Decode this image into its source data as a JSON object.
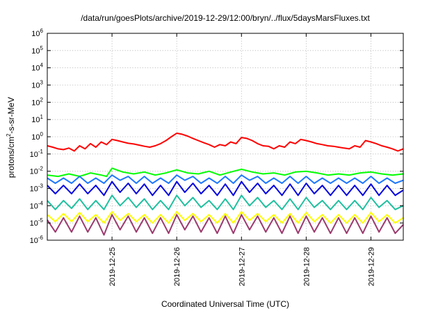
{
  "chart_data": {
    "type": "line",
    "title": "/data/run/goesPlots/archive/2019-12-29/12:00/bryn/../flux/5daysMarsFluxes.txt",
    "xlabel": "Coordinated Universal Time (UTC)",
    "ylabel": {
      "prefix": "protons/cm",
      "sup": "2",
      "suffix": "-s-sr-MeV"
    },
    "y_scale": "log",
    "ylim": [
      1e-06,
      1000000.0
    ],
    "y_ticks": [
      {
        "value": 1e-06,
        "base": "10",
        "exp": "-6"
      },
      {
        "value": 1e-05,
        "base": "10",
        "exp": "-5"
      },
      {
        "value": 0.0001,
        "base": "10",
        "exp": "-4"
      },
      {
        "value": 0.001,
        "base": "10",
        "exp": "-3"
      },
      {
        "value": 0.01,
        "base": "10",
        "exp": "-2"
      },
      {
        "value": 0.1,
        "base": "10",
        "exp": "-1"
      },
      {
        "value": 1.0,
        "base": "10",
        "exp": "0"
      },
      {
        "value": 10.0,
        "base": "10",
        "exp": "1"
      },
      {
        "value": 100.0,
        "base": "10",
        "exp": "2"
      },
      {
        "value": 1000.0,
        "base": "10",
        "exp": "3"
      },
      {
        "value": 10000.0,
        "base": "10",
        "exp": "4"
      },
      {
        "value": 100000.0,
        "base": "10",
        "exp": "5"
      },
      {
        "value": 1000000.0,
        "base": "10",
        "exp": "6"
      }
    ],
    "xlim": [
      "2019-12-24T00:00",
      "2019-12-29T12:00"
    ],
    "x_ticks": [
      "2019-12-25",
      "2019-12-26",
      "2019-12-27",
      "2019-12-28",
      "2019-12-29"
    ],
    "grid": true,
    "legend": "none",
    "series": [
      {
        "color": "#ff0000",
        "x": [
          "2019-12-24T00:00",
          "2019-12-24T02:00",
          "2019-12-24T04:00",
          "2019-12-24T06:00",
          "2019-12-24T08:00",
          "2019-12-24T10:00",
          "2019-12-24T12:00",
          "2019-12-24T14:00",
          "2019-12-24T16:00",
          "2019-12-24T18:00",
          "2019-12-24T20:00",
          "2019-12-24T22:00",
          "2019-12-25T00:00",
          "2019-12-25T02:00",
          "2019-12-25T04:00",
          "2019-12-25T06:00",
          "2019-12-25T08:00",
          "2019-12-25T10:00",
          "2019-12-25T12:00",
          "2019-12-25T14:00",
          "2019-12-25T16:00",
          "2019-12-25T18:00",
          "2019-12-25T20:00",
          "2019-12-25T22:00",
          "2019-12-26T00:00",
          "2019-12-26T02:00",
          "2019-12-26T04:00",
          "2019-12-26T06:00",
          "2019-12-26T08:00",
          "2019-12-26T10:00",
          "2019-12-26T12:00",
          "2019-12-26T14:00",
          "2019-12-26T16:00",
          "2019-12-26T18:00",
          "2019-12-26T20:00",
          "2019-12-26T22:00",
          "2019-12-27T00:00",
          "2019-12-27T02:00",
          "2019-12-27T04:00",
          "2019-12-27T06:00",
          "2019-12-27T08:00",
          "2019-12-27T10:00",
          "2019-12-27T12:00",
          "2019-12-27T14:00",
          "2019-12-27T16:00",
          "2019-12-27T18:00",
          "2019-12-27T20:00",
          "2019-12-27T22:00",
          "2019-12-28T00:00",
          "2019-12-28T02:00",
          "2019-12-28T04:00",
          "2019-12-28T06:00",
          "2019-12-28T08:00",
          "2019-12-28T10:00",
          "2019-12-28T12:00",
          "2019-12-28T14:00",
          "2019-12-28T16:00",
          "2019-12-28T18:00",
          "2019-12-28T20:00",
          "2019-12-28T22:00",
          "2019-12-29T00:00",
          "2019-12-29T02:00",
          "2019-12-29T04:00",
          "2019-12-29T06:00",
          "2019-12-29T08:00",
          "2019-12-29T10:00",
          "2019-12-29T12:00"
        ],
        "y": [
          0.3,
          0.25,
          0.2,
          0.18,
          0.22,
          0.15,
          0.3,
          0.2,
          0.4,
          0.25,
          0.5,
          0.35,
          0.7,
          0.6,
          0.5,
          0.42,
          0.38,
          0.33,
          0.28,
          0.25,
          0.3,
          0.4,
          0.6,
          1.0,
          1.6,
          1.4,
          1.1,
          0.8,
          0.6,
          0.45,
          0.35,
          0.25,
          0.35,
          0.3,
          0.5,
          0.4,
          0.9,
          0.8,
          0.6,
          0.4,
          0.3,
          0.28,
          0.2,
          0.3,
          0.25,
          0.5,
          0.4,
          0.7,
          0.6,
          0.5,
          0.4,
          0.35,
          0.3,
          0.28,
          0.25,
          0.22,
          0.2,
          0.3,
          0.25,
          0.6,
          0.5,
          0.4,
          0.3,
          0.25,
          0.2,
          0.15,
          0.2
        ]
      },
      {
        "color": "#00ff00",
        "x": [
          "2019-12-24T00:00",
          "2019-12-24T04:00",
          "2019-12-24T08:00",
          "2019-12-24T12:00",
          "2019-12-24T16:00",
          "2019-12-24T20:00",
          "2019-12-24T22:00",
          "2019-12-25T00:00",
          "2019-12-25T04:00",
          "2019-12-25T08:00",
          "2019-12-25T12:00",
          "2019-12-25T16:00",
          "2019-12-25T20:00",
          "2019-12-26T00:00",
          "2019-12-26T04:00",
          "2019-12-26T08:00",
          "2019-12-26T12:00",
          "2019-12-26T16:00",
          "2019-12-26T20:00",
          "2019-12-27T00:00",
          "2019-12-27T04:00",
          "2019-12-27T08:00",
          "2019-12-27T12:00",
          "2019-12-27T16:00",
          "2019-12-27T20:00",
          "2019-12-28T00:00",
          "2019-12-28T04:00",
          "2019-12-28T08:00",
          "2019-12-28T12:00",
          "2019-12-28T16:00",
          "2019-12-28T20:00",
          "2019-12-29T00:00",
          "2019-12-29T04:00",
          "2019-12-29T08:00",
          "2019-12-29T12:00"
        ],
        "y": [
          0.006,
          0.005,
          0.007,
          0.005,
          0.008,
          0.006,
          0.005,
          0.015,
          0.009,
          0.007,
          0.009,
          0.006,
          0.008,
          0.012,
          0.008,
          0.007,
          0.01,
          0.006,
          0.009,
          0.013,
          0.009,
          0.007,
          0.008,
          0.006,
          0.009,
          0.01,
          0.008,
          0.006,
          0.007,
          0.006,
          0.008,
          0.009,
          0.007,
          0.006,
          0.007
        ]
      },
      {
        "color": "#1e78ff",
        "x": [
          "2019-12-24T00:00",
          "2019-12-24T03:00",
          "2019-12-24T06:00",
          "2019-12-24T09:00",
          "2019-12-24T12:00",
          "2019-12-24T15:00",
          "2019-12-24T18:00",
          "2019-12-24T21:00",
          "2019-12-25T00:00",
          "2019-12-25T03:00",
          "2019-12-25T06:00",
          "2019-12-25T09:00",
          "2019-12-25T12:00",
          "2019-12-25T15:00",
          "2019-12-25T18:00",
          "2019-12-25T21:00",
          "2019-12-26T00:00",
          "2019-12-26T03:00",
          "2019-12-26T06:00",
          "2019-12-26T09:00",
          "2019-12-26T12:00",
          "2019-12-26T15:00",
          "2019-12-26T18:00",
          "2019-12-26T21:00",
          "2019-12-27T00:00",
          "2019-12-27T03:00",
          "2019-12-27T06:00",
          "2019-12-27T09:00",
          "2019-12-27T12:00",
          "2019-12-27T15:00",
          "2019-12-27T18:00",
          "2019-12-27T21:00",
          "2019-12-28T00:00",
          "2019-12-28T03:00",
          "2019-12-28T06:00",
          "2019-12-28T09:00",
          "2019-12-28T12:00",
          "2019-12-28T15:00",
          "2019-12-28T18:00",
          "2019-12-28T21:00",
          "2019-12-29T00:00",
          "2019-12-29T03:00",
          "2019-12-29T06:00",
          "2019-12-29T09:00",
          "2019-12-29T12:00"
        ],
        "y": [
          0.004,
          0.002,
          0.004,
          0.002,
          0.005,
          0.002,
          0.004,
          0.002,
          0.006,
          0.003,
          0.005,
          0.002,
          0.005,
          0.002,
          0.004,
          0.002,
          0.006,
          0.003,
          0.005,
          0.002,
          0.004,
          0.002,
          0.005,
          0.002,
          0.006,
          0.003,
          0.005,
          0.002,
          0.004,
          0.002,
          0.005,
          0.002,
          0.005,
          0.002,
          0.004,
          0.002,
          0.004,
          0.002,
          0.004,
          0.002,
          0.005,
          0.002,
          0.004,
          0.002,
          0.003
        ]
      },
      {
        "color": "#0000dd",
        "x": [
          "2019-12-24T00:00",
          "2019-12-24T03:00",
          "2019-12-24T06:00",
          "2019-12-24T09:00",
          "2019-12-24T12:00",
          "2019-12-24T15:00",
          "2019-12-24T18:00",
          "2019-12-24T21:00",
          "2019-12-25T00:00",
          "2019-12-25T03:00",
          "2019-12-25T06:00",
          "2019-12-25T09:00",
          "2019-12-25T12:00",
          "2019-12-25T15:00",
          "2019-12-25T18:00",
          "2019-12-25T21:00",
          "2019-12-26T00:00",
          "2019-12-26T03:00",
          "2019-12-26T06:00",
          "2019-12-26T09:00",
          "2019-12-26T12:00",
          "2019-12-26T15:00",
          "2019-12-26T18:00",
          "2019-12-26T21:00",
          "2019-12-27T00:00",
          "2019-12-27T03:00",
          "2019-12-27T06:00",
          "2019-12-27T09:00",
          "2019-12-27T12:00",
          "2019-12-27T15:00",
          "2019-12-27T18:00",
          "2019-12-27T21:00",
          "2019-12-28T00:00",
          "2019-12-28T03:00",
          "2019-12-28T06:00",
          "2019-12-28T09:00",
          "2019-12-28T12:00",
          "2019-12-28T15:00",
          "2019-12-28T18:00",
          "2019-12-28T21:00",
          "2019-12-29T00:00",
          "2019-12-29T03:00",
          "2019-12-29T06:00",
          "2019-12-29T09:00",
          "2019-12-29T12:00"
        ],
        "y": [
          0.0015,
          0.0005,
          0.0015,
          0.0005,
          0.0018,
          0.0005,
          0.0015,
          0.0004,
          0.0025,
          0.0006,
          0.002,
          0.0005,
          0.0018,
          0.0004,
          0.0015,
          0.0004,
          0.0025,
          0.0006,
          0.002,
          0.0005,
          0.0015,
          0.0004,
          0.0018,
          0.0004,
          0.0025,
          0.0006,
          0.002,
          0.0005,
          0.0015,
          0.0004,
          0.0018,
          0.0004,
          0.002,
          0.0005,
          0.0015,
          0.0004,
          0.0015,
          0.0004,
          0.0015,
          0.0004,
          0.0018,
          0.0004,
          0.0015,
          0.0004,
          0.0008
        ]
      },
      {
        "color": "#20c0a0",
        "x": [
          "2019-12-24T00:00",
          "2019-12-24T03:00",
          "2019-12-24T06:00",
          "2019-12-24T09:00",
          "2019-12-24T12:00",
          "2019-12-24T15:00",
          "2019-12-24T18:00",
          "2019-12-24T21:00",
          "2019-12-25T00:00",
          "2019-12-25T03:00",
          "2019-12-25T06:00",
          "2019-12-25T09:00",
          "2019-12-25T12:00",
          "2019-12-25T15:00",
          "2019-12-25T18:00",
          "2019-12-25T21:00",
          "2019-12-26T00:00",
          "2019-12-26T03:00",
          "2019-12-26T06:00",
          "2019-12-26T09:00",
          "2019-12-26T12:00",
          "2019-12-26T15:00",
          "2019-12-26T18:00",
          "2019-12-26T21:00",
          "2019-12-27T00:00",
          "2019-12-27T03:00",
          "2019-12-27T06:00",
          "2019-12-27T09:00",
          "2019-12-27T12:00",
          "2019-12-27T15:00",
          "2019-12-27T18:00",
          "2019-12-27T21:00",
          "2019-12-28T00:00",
          "2019-12-28T03:00",
          "2019-12-28T06:00",
          "2019-12-28T09:00",
          "2019-12-28T12:00",
          "2019-12-28T15:00",
          "2019-12-28T18:00",
          "2019-12-28T21:00",
          "2019-12-29T00:00",
          "2019-12-29T03:00",
          "2019-12-29T06:00",
          "2019-12-29T09:00",
          "2019-12-29T12:00"
        ],
        "y": [
          0.0002,
          6e-05,
          0.0002,
          7e-05,
          0.00025,
          6e-05,
          0.0002,
          6e-05,
          0.0004,
          0.0001,
          0.0003,
          8e-05,
          0.00025,
          6e-05,
          0.0002,
          6e-05,
          0.0004,
          0.0001,
          0.0003,
          8e-05,
          0.0002,
          6e-05,
          0.00025,
          6e-05,
          0.0004,
          0.0001,
          0.0003,
          8e-05,
          0.0002,
          6e-05,
          0.00025,
          6e-05,
          0.0003,
          8e-05,
          0.0002,
          6e-05,
          0.0002,
          6e-05,
          0.0002,
          6e-05,
          0.0003,
          8e-05,
          0.0002,
          6e-05,
          0.0001
        ]
      },
      {
        "color": "#ffff00",
        "x": [
          "2019-12-24T00:00",
          "2019-12-24T03:00",
          "2019-12-24T06:00",
          "2019-12-24T09:00",
          "2019-12-24T12:00",
          "2019-12-24T15:00",
          "2019-12-24T18:00",
          "2019-12-24T21:00",
          "2019-12-25T00:00",
          "2019-12-25T03:00",
          "2019-12-25T06:00",
          "2019-12-25T09:00",
          "2019-12-25T12:00",
          "2019-12-25T15:00",
          "2019-12-25T18:00",
          "2019-12-25T21:00",
          "2019-12-26T00:00",
          "2019-12-26T03:00",
          "2019-12-26T06:00",
          "2019-12-26T09:00",
          "2019-12-26T12:00",
          "2019-12-26T15:00",
          "2019-12-26T18:00",
          "2019-12-26T21:00",
          "2019-12-27T00:00",
          "2019-12-27T03:00",
          "2019-12-27T06:00",
          "2019-12-27T09:00",
          "2019-12-27T12:00",
          "2019-12-27T15:00",
          "2019-12-27T18:00",
          "2019-12-27T21:00",
          "2019-12-28T00:00",
          "2019-12-28T03:00",
          "2019-12-28T06:00",
          "2019-12-28T09:00",
          "2019-12-28T12:00",
          "2019-12-28T15:00",
          "2019-12-28T18:00",
          "2019-12-28T21:00",
          "2019-12-29T00:00",
          "2019-12-29T03:00",
          "2019-12-29T06:00",
          "2019-12-29T09:00",
          "2019-12-29T12:00"
        ],
        "y": [
          3e-05,
          1.2e-05,
          3.5e-05,
          1.2e-05,
          4e-05,
          1.2e-05,
          3e-05,
          1e-05,
          4.5e-05,
          1.4e-05,
          3.5e-05,
          1.2e-05,
          3e-05,
          1e-05,
          3e-05,
          1e-05,
          4.5e-05,
          1.4e-05,
          3.5e-05,
          1.2e-05,
          3e-05,
          1e-05,
          3.5e-05,
          1e-05,
          4.5e-05,
          1.4e-05,
          3.5e-05,
          1.2e-05,
          3e-05,
          1e-05,
          3.5e-05,
          1e-05,
          4e-05,
          1.2e-05,
          3e-05,
          1e-05,
          3e-05,
          1e-05,
          3e-05,
          1e-05,
          4e-05,
          1.2e-05,
          3e-05,
          1e-05,
          2e-05
        ]
      },
      {
        "color": "#9b3a6e",
        "x": [
          "2019-12-24T00:00",
          "2019-12-24T03:00",
          "2019-12-24T06:00",
          "2019-12-24T09:00",
          "2019-12-24T12:00",
          "2019-12-24T15:00",
          "2019-12-24T18:00",
          "2019-12-24T21:00",
          "2019-12-25T00:00",
          "2019-12-25T03:00",
          "2019-12-25T06:00",
          "2019-12-25T09:00",
          "2019-12-25T12:00",
          "2019-12-25T15:00",
          "2019-12-25T18:00",
          "2019-12-25T21:00",
          "2019-12-26T00:00",
          "2019-12-26T03:00",
          "2019-12-26T06:00",
          "2019-12-26T09:00",
          "2019-12-26T12:00",
          "2019-12-26T15:00",
          "2019-12-26T18:00",
          "2019-12-26T21:00",
          "2019-12-27T00:00",
          "2019-12-27T03:00",
          "2019-12-27T06:00",
          "2019-12-27T09:00",
          "2019-12-27T12:00",
          "2019-12-27T15:00",
          "2019-12-27T18:00",
          "2019-12-27T21:00",
          "2019-12-28T00:00",
          "2019-12-28T03:00",
          "2019-12-28T06:00",
          "2019-12-28T09:00",
          "2019-12-28T12:00",
          "2019-12-28T15:00",
          "2019-12-28T18:00",
          "2019-12-28T21:00",
          "2019-12-29T00:00",
          "2019-12-29T03:00",
          "2019-12-29T06:00",
          "2019-12-29T09:00",
          "2019-12-29T12:00"
        ],
        "y": [
          1.5e-05,
          3e-06,
          2e-05,
          3e-06,
          2.5e-05,
          3e-06,
          2e-05,
          2e-06,
          3e-05,
          4e-06,
          2.5e-05,
          3e-06,
          2e-05,
          2.5e-06,
          2e-05,
          2.5e-06,
          3e-05,
          4e-06,
          2.5e-05,
          3e-06,
          2e-05,
          2.5e-06,
          2.5e-05,
          2.5e-06,
          3e-05,
          4e-06,
          2.5e-05,
          3e-06,
          2e-05,
          2.5e-06,
          2.5e-05,
          2.5e-06,
          2.5e-05,
          3e-06,
          2e-05,
          2.5e-06,
          2e-05,
          2.5e-06,
          2e-05,
          2.5e-06,
          2.5e-05,
          3e-06,
          2e-05,
          2.5e-06,
          8e-06
        ]
      }
    ]
  }
}
